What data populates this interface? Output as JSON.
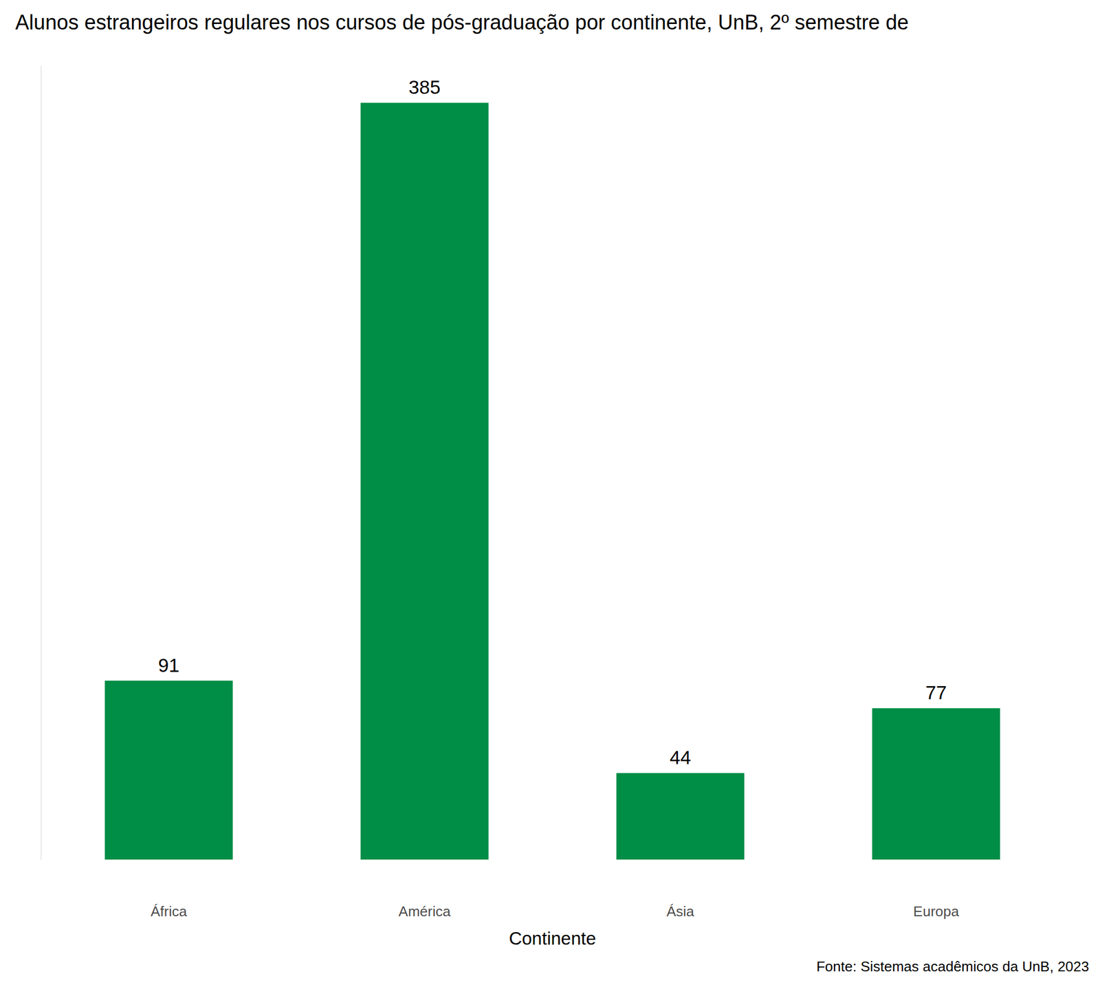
{
  "chart_data": {
    "type": "bar",
    "title": "Alunos estrangeiros regulares nos cursos de pós-graduação por continente, UnB, 2º semestre de",
    "xlabel": "Continente",
    "caption": "Fonte: Sistemas acadêmicos da UnB, 2023",
    "categories": [
      "África",
      "América",
      "Ásia",
      "Europa"
    ],
    "values": [
      91,
      385,
      44,
      77
    ],
    "color": "#008d46",
    "ylim": [
      0,
      404
    ],
    "grid": false,
    "data_labels": true,
    "tick_labels": "x"
  }
}
